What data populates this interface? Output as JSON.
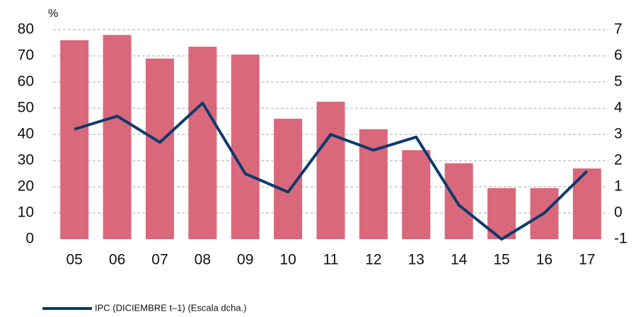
{
  "chart_data": {
    "type": "bar_line",
    "y_unit_label": "%",
    "categories": [
      "05",
      "06",
      "07",
      "08",
      "09",
      "10",
      "11",
      "12",
      "13",
      "14",
      "15",
      "16",
      "17"
    ],
    "series": [
      {
        "color": "#d9687a",
        "values": [
          76,
          78,
          69,
          73.5,
          70.5,
          46,
          52.5,
          42,
          34,
          29,
          19.5,
          19.5,
          27
        ]
      },
      {
        "name": "IPC (DICIEMBRE t–1) (Escala dcha.)",
        "color": "#0d3a6e",
        "axis": "y2",
        "values": [
          3.2,
          3.7,
          2.7,
          4.2,
          1.5,
          0.8,
          3.0,
          2.4,
          2.9,
          0.3,
          -1.0,
          0.0,
          1.6
        ]
      }
    ],
    "ylim": [
      0,
      80
    ],
    "yticks": [
      0,
      10,
      20,
      30,
      40,
      50,
      60,
      70,
      80
    ],
    "y2lim": [
      -1,
      7
    ],
    "y2ticks": [
      {
        "value": -1,
        "label": "-1"
      },
      0,
      1,
      2,
      3,
      4,
      5,
      6,
      7
    ],
    "grid": true
  }
}
